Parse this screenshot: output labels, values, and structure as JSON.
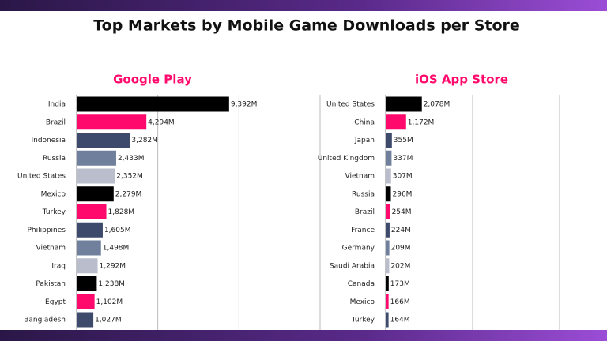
{
  "title": "Top Markets by Mobile Game Downloads per Store",
  "chart_data": [
    {
      "type": "bar",
      "orientation": "horizontal",
      "title": "Google Play",
      "categories": [
        "India",
        "Brazil",
        "Indonesia",
        "Russia",
        "United States",
        "Mexico",
        "Turkey",
        "Philippines",
        "Vietnam",
        "Iraq",
        "Pakistan",
        "Egypt",
        "Bangladesh"
      ],
      "values": [
        9392,
        4294,
        3282,
        2433,
        2352,
        2279,
        1828,
        1605,
        1498,
        1292,
        1238,
        1102,
        1027
      ],
      "value_labels": [
        "9,392M",
        "4,294M",
        "3,282M",
        "2,433M",
        "2,352M",
        "2,279M",
        "1,828M",
        "1,605M",
        "1,498M",
        "1,292M",
        "1,238M",
        "1,102M",
        "1,027M"
      ],
      "colors": [
        "#000000",
        "#ff0a6c",
        "#3d4a6b",
        "#6f7f9c",
        "#b9bdcc"
      ],
      "xlim": [
        0,
        15000
      ],
      "xticks": [
        0,
        5000,
        10000,
        15000
      ],
      "grid": true
    },
    {
      "type": "bar",
      "orientation": "horizontal",
      "title": "iOS App Store",
      "categories": [
        "United States",
        "China",
        "Japan",
        "United Kingdom",
        "Vietnam",
        "Russia",
        "Brazil",
        "France",
        "Germany",
        "Saudi Arabia",
        "Canada",
        "Mexico",
        "Turkey"
      ],
      "values": [
        2078,
        1172,
        355,
        337,
        307,
        296,
        254,
        224,
        209,
        202,
        173,
        166,
        164
      ],
      "value_labels": [
        "2,078M",
        "1,172M",
        "355M",
        "337M",
        "307M",
        "296M",
        "254M",
        "224M",
        "209M",
        "202M",
        "173M",
        "166M",
        "164M"
      ],
      "colors": [
        "#000000",
        "#ff0a6c",
        "#3d4a6b",
        "#6f7f9c",
        "#b9bdcc"
      ],
      "xlim": [
        0,
        12500
      ],
      "xticks": [
        0,
        5000,
        10000
      ],
      "grid": true
    }
  ]
}
